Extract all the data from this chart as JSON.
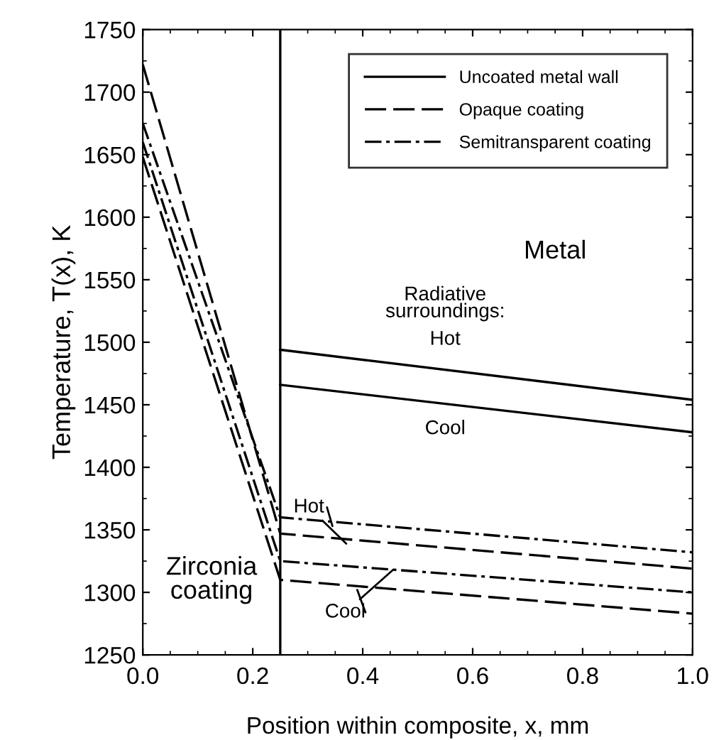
{
  "chart_data": {
    "type": "line",
    "xlabel": "Position within composite, x, mm",
    "ylabel": "Temperature, T(x), K",
    "xlim": [
      0.0,
      1.0
    ],
    "xticks": [
      {
        "value": 0.0,
        "label": "0.0"
      },
      0.2,
      0.4,
      0.6,
      0.8,
      {
        "value": 1.0,
        "label": "1.0"
      }
    ],
    "ylim": [
      1250,
      1750
    ],
    "yticks": [
      1250,
      1300,
      1350,
      1400,
      1450,
      1500,
      1550,
      1600,
      1650,
      1700,
      1750
    ],
    "grid": false,
    "legend": "top right",
    "marker": "none",
    "series": [
      {
        "name": "Uncoated metal wall",
        "color": "#000000",
        "line_style": "solid",
        "x": [
          0.25,
          1.0
        ],
        "values": [
          1494,
          1454
        ]
      },
      {
        "color": "#000000",
        "line_style": "solid",
        "x": [
          0.25,
          1.0
        ],
        "values": [
          1466,
          1428
        ]
      },
      {
        "name": "Opaque coating",
        "color": "#000000",
        "line_style": "dashed",
        "x": [
          0.0,
          0.25,
          1.0
        ],
        "values": [
          1722,
          1347,
          1319
        ]
      },
      {
        "color": "#000000",
        "line_style": "dashed",
        "x": [
          0.0,
          0.25,
          1.0
        ],
        "values": [
          1648,
          1310,
          1283
        ]
      },
      {
        "name": "Semitransparent coating",
        "color": "#000000",
        "line_style": "dashdot",
        "x": [
          0.0,
          0.25,
          1.0
        ],
        "values": [
          1675,
          1360,
          1332
        ]
      },
      {
        "color": "#000000",
        "line_style": "dashdot",
        "x": [
          0.0,
          0.25,
          1.0
        ],
        "values": [
          1660,
          1325,
          1300
        ]
      }
    ],
    "ref_lines": [
      {
        "axis": "x",
        "value": 0.25,
        "color": "#000000",
        "line_style": "solid"
      }
    ],
    "annotations": [
      "Metal",
      "Radiative\nsurroundings:",
      "Hot",
      "Cool",
      {
        "text": "Hot",
        "x": 0.37,
        "y": 1339
      },
      {
        "text": "Cool",
        "x": 0.455,
        "y": 1318
      },
      "Zirconia\ncoating"
    ]
  }
}
